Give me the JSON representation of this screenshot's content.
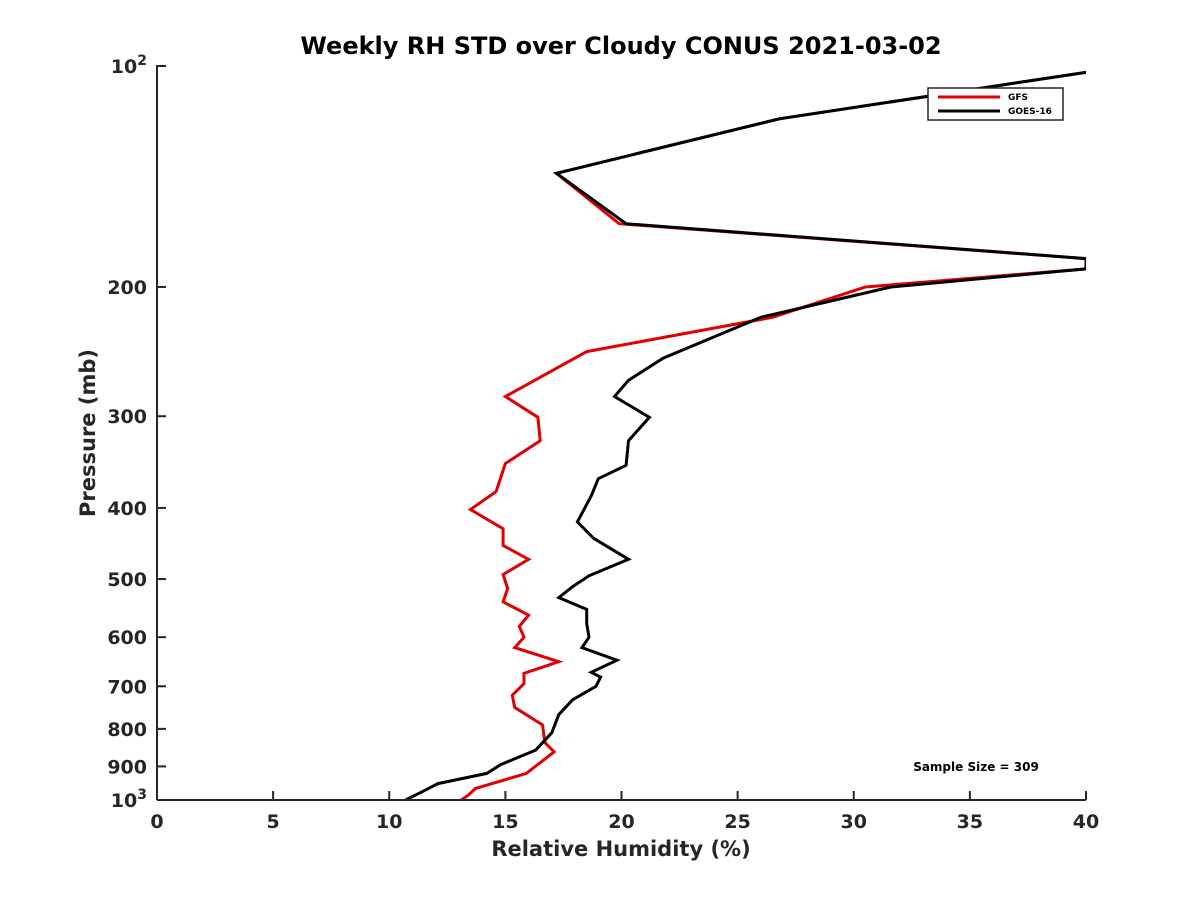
{
  "chart_data": {
    "type": "line",
    "title": "Weekly RH STD over Cloudy CONUS 2021-03-02",
    "xlabel": "Relative Humidity (%)",
    "ylabel": "Pressure (mb)",
    "xlim": [
      0,
      40
    ],
    "ylim": [
      100,
      1000
    ],
    "y_scale": "log",
    "y_reversed": true,
    "grid": false,
    "legend_position": "top-right",
    "x_ticks": [
      0,
      5,
      10,
      15,
      20,
      25,
      30,
      35,
      40
    ],
    "x_tick_labels": [
      "0",
      "5",
      "10",
      "15",
      "20",
      "25",
      "30",
      "35",
      "40"
    ],
    "y_ticks": [
      100,
      200,
      300,
      400,
      500,
      600,
      700,
      800,
      900,
      1000
    ],
    "y_tick_labels": [
      {
        "base": "10",
        "exp": "2"
      },
      {
        "base": "200",
        "exp": ""
      },
      {
        "base": "300",
        "exp": ""
      },
      {
        "base": "400",
        "exp": ""
      },
      {
        "base": "500",
        "exp": ""
      },
      {
        "base": "600",
        "exp": ""
      },
      {
        "base": "700",
        "exp": ""
      },
      {
        "base": "800",
        "exp": ""
      },
      {
        "base": "900",
        "exp": ""
      },
      {
        "base": "10",
        "exp": "3"
      }
    ],
    "annotation": "Sample Size = 309",
    "series": [
      {
        "name": "GFS",
        "color": "#e00000",
        "points": [
          [
            40.0,
            102
          ],
          [
            26.8,
            118
          ],
          [
            17.2,
            140
          ],
          [
            19.9,
            164
          ],
          [
            40.0,
            183
          ],
          [
            40.0,
            189
          ],
          [
            30.5,
            200
          ],
          [
            26.5,
            220
          ],
          [
            18.5,
            245
          ],
          [
            15.0,
            282
          ],
          [
            16.4,
            301
          ],
          [
            16.5,
            324
          ],
          [
            15.0,
            348
          ],
          [
            14.6,
            380
          ],
          [
            13.5,
            402
          ],
          [
            14.9,
            427
          ],
          [
            14.9,
            450
          ],
          [
            16.0,
            470
          ],
          [
            14.9,
            493
          ],
          [
            15.1,
            515
          ],
          [
            14.9,
            537
          ],
          [
            16.0,
            560
          ],
          [
            15.6,
            580
          ],
          [
            15.8,
            600
          ],
          [
            15.4,
            620
          ],
          [
            17.3,
            648
          ],
          [
            15.8,
            672
          ],
          [
            15.8,
            694
          ],
          [
            15.3,
            720
          ],
          [
            15.4,
            748
          ],
          [
            16.6,
            790
          ],
          [
            16.7,
            835
          ],
          [
            17.1,
            860
          ],
          [
            15.9,
            920
          ],
          [
            13.7,
            965
          ],
          [
            13.4,
            985
          ],
          [
            13.1,
            1000
          ]
        ]
      },
      {
        "name": "GOES-16",
        "color": "#000000",
        "points": [
          [
            40.0,
            102
          ],
          [
            26.8,
            118
          ],
          [
            17.2,
            140
          ],
          [
            20.2,
            164
          ],
          [
            40.0,
            183
          ],
          [
            40.0,
            189
          ],
          [
            31.6,
            200
          ],
          [
            26.0,
            220
          ],
          [
            21.8,
            250
          ],
          [
            20.3,
            268
          ],
          [
            19.7,
            282
          ],
          [
            21.2,
            301
          ],
          [
            20.3,
            324
          ],
          [
            20.2,
            350
          ],
          [
            19.0,
            365
          ],
          [
            18.7,
            385
          ],
          [
            18.1,
            418
          ],
          [
            18.8,
            440
          ],
          [
            20.3,
            470
          ],
          [
            18.6,
            495
          ],
          [
            17.9,
            512
          ],
          [
            17.3,
            530
          ],
          [
            18.5,
            550
          ],
          [
            18.5,
            575
          ],
          [
            18.6,
            600
          ],
          [
            18.3,
            620
          ],
          [
            19.8,
            645
          ],
          [
            18.7,
            670
          ],
          [
            19.1,
            680
          ],
          [
            18.9,
            700
          ],
          [
            17.9,
            730
          ],
          [
            17.3,
            765
          ],
          [
            17.0,
            810
          ],
          [
            16.3,
            855
          ],
          [
            14.8,
            895
          ],
          [
            14.2,
            920
          ],
          [
            12.1,
            950
          ],
          [
            11.4,
            975
          ],
          [
            10.7,
            1000
          ]
        ]
      }
    ]
  }
}
